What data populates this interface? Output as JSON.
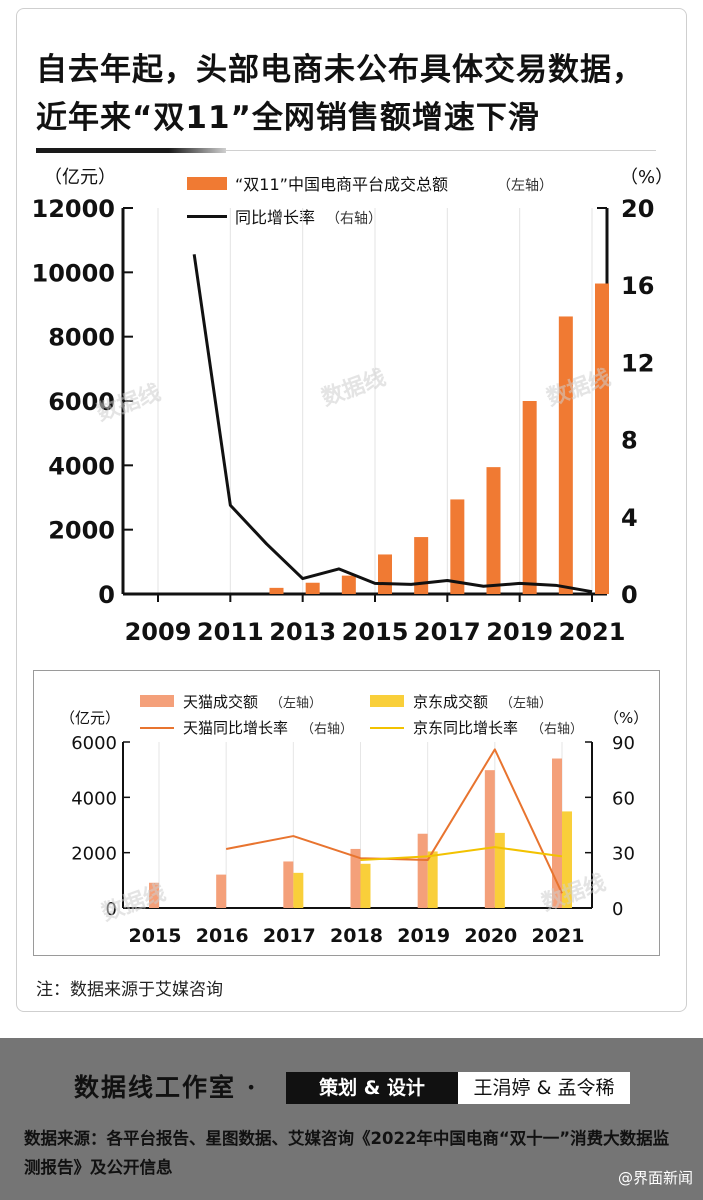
{
  "title": {
    "line1": "自去年起，头部电商未公布具体交易数据，",
    "line2": "近年来“双11”全网销售额增速下滑"
  },
  "watermark": "数据线",
  "chart_data": [
    {
      "type": "bar",
      "left_unit": "（亿元）",
      "right_unit": "（%）",
      "categories": [
        "2009",
        "2010",
        "2011",
        "2012",
        "2013",
        "2014",
        "2015",
        "2016",
        "2017",
        "2018",
        "2019",
        "2020",
        "2021"
      ],
      "x_tick_labels": [
        "2009",
        "2011",
        "2013",
        "2015",
        "2017",
        "2019",
        "2021"
      ],
      "y_left_ticks": [
        "0",
        "2000",
        "4000",
        "6000",
        "8000",
        "10000",
        "12000"
      ],
      "y_right_ticks": [
        "0",
        "4",
        "8",
        "12",
        "16",
        "20"
      ],
      "ylim_left": [
        0,
        12000
      ],
      "ylim_right": [
        0,
        20
      ],
      "series": [
        {
          "name": "“双11”中国电商平台成交总额",
          "axis_note": "（左轴）",
          "kind": "bar",
          "color": "#f07a33",
          "values": [
            0,
            0,
            0,
            191,
            350,
            571,
            1229,
            1770,
            2940,
            3944,
            6000,
            8628,
            9652
          ]
        },
        {
          "name": "同比增长率",
          "axis_note": "（右轴）",
          "kind": "line",
          "color": "#111111",
          "values": [
            null,
            17.6,
            4.6,
            2.6,
            0.8,
            1.3,
            0.55,
            0.5,
            0.7,
            0.4,
            0.55,
            0.45,
            0.12
          ]
        }
      ]
    },
    {
      "type": "bar",
      "left_unit": "（亿元）",
      "right_unit": "（%）",
      "categories": [
        "2015",
        "2016",
        "2017",
        "2018",
        "2019",
        "2020",
        "2021"
      ],
      "y_left_ticks": [
        "0",
        "2000",
        "4000",
        "6000"
      ],
      "y_right_ticks": [
        "0",
        "30",
        "60",
        "90"
      ],
      "ylim_left": [
        0,
        6000
      ],
      "ylim_right": [
        0,
        90
      ],
      "series": [
        {
          "name": "天猫成交额",
          "axis_note": "（左轴）",
          "kind": "bar",
          "color": "#f4a07a",
          "values": [
            912,
            1207,
            1682,
            2135,
            2684,
            4982,
            5403
          ]
        },
        {
          "name": "京东成交额",
          "axis_note": "（左轴）",
          "kind": "bar",
          "color": "#f9cf3a",
          "values": [
            null,
            null,
            1271,
            1598,
            2044,
            2715,
            3491
          ]
        },
        {
          "name": "天猫同比增长率",
          "axis_note": "（右轴）",
          "kind": "line",
          "color": "#e8742f",
          "values": [
            null,
            32,
            39,
            27,
            26,
            86,
            8
          ]
        },
        {
          "name": "京东同比增长率",
          "axis_note": "（右轴）",
          "kind": "line",
          "color": "#f2c200",
          "values": [
            null,
            null,
            null,
            26,
            28,
            33,
            28
          ]
        }
      ]
    }
  ],
  "note": "注：数据来源于艾媒咨询",
  "footer": {
    "studio": "数据线工作室 ·",
    "credit_label": "策划 & 设计",
    "credit_names": "王涓婷 & 孟令稀",
    "source": "数据来源：各平台报告、星图数据、艾媒咨询《2022年中国电商“双十一”消费大数据监测报告》及公开信息",
    "weibo": "@界面新闻"
  }
}
